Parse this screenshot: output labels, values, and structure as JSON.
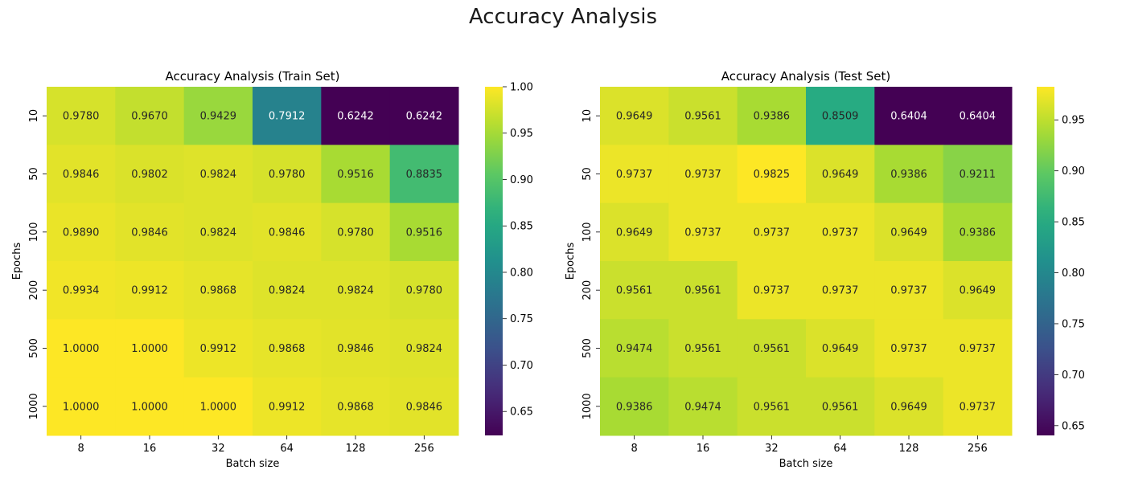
{
  "figure": {
    "title": "Accuracy Analysis"
  },
  "chart_data": [
    {
      "type": "heatmap",
      "title": "Accuracy Analysis (Train Set)",
      "xlabel": "Batch size",
      "ylabel": "Epochs",
      "x": [
        "8",
        "16",
        "32",
        "64",
        "128",
        "256"
      ],
      "y": [
        "10",
        "50",
        "100",
        "200",
        "500",
        "1000"
      ],
      "values": [
        [
          0.978,
          0.967,
          0.9429,
          0.7912,
          0.6242,
          0.6242
        ],
        [
          0.9846,
          0.9802,
          0.9824,
          0.978,
          0.9516,
          0.8835
        ],
        [
          0.989,
          0.9846,
          0.9824,
          0.9846,
          0.978,
          0.9516
        ],
        [
          0.9934,
          0.9912,
          0.9868,
          0.9824,
          0.9824,
          0.978
        ],
        [
          1.0,
          1.0,
          0.9912,
          0.9868,
          0.9846,
          0.9824
        ],
        [
          1.0,
          1.0,
          1.0,
          0.9912,
          0.9868,
          0.9846
        ]
      ],
      "colormap": "viridis",
      "vmin": 0.6242,
      "vmax": 1.0,
      "colorbar_ticks": [
        "0.65",
        "0.70",
        "0.75",
        "0.80",
        "0.85",
        "0.90",
        "0.95",
        "1.00"
      ],
      "annotation_format": "4 decimals"
    },
    {
      "type": "heatmap",
      "title": "Accuracy Analysis (Test Set)",
      "xlabel": "Batch size",
      "ylabel": "Epochs",
      "x": [
        "8",
        "16",
        "32",
        "64",
        "128",
        "256"
      ],
      "y": [
        "10",
        "50",
        "100",
        "200",
        "500",
        "1000"
      ],
      "values": [
        [
          0.9649,
          0.9561,
          0.9386,
          0.8509,
          0.6404,
          0.6404
        ],
        [
          0.9737,
          0.9737,
          0.9825,
          0.9649,
          0.9386,
          0.9211
        ],
        [
          0.9649,
          0.9737,
          0.9737,
          0.9737,
          0.9649,
          0.9386
        ],
        [
          0.9561,
          0.9561,
          0.9737,
          0.9737,
          0.9737,
          0.9649
        ],
        [
          0.9474,
          0.9561,
          0.9561,
          0.9649,
          0.9737,
          0.9737
        ],
        [
          0.9386,
          0.9474,
          0.9561,
          0.9561,
          0.9649,
          0.9737
        ]
      ],
      "colormap": "viridis",
      "vmin": 0.6404,
      "vmax": 0.9825,
      "colorbar_ticks": [
        "0.65",
        "0.70",
        "0.75",
        "0.80",
        "0.85",
        "0.90",
        "0.95"
      ],
      "annotation_format": "4 decimals"
    }
  ]
}
